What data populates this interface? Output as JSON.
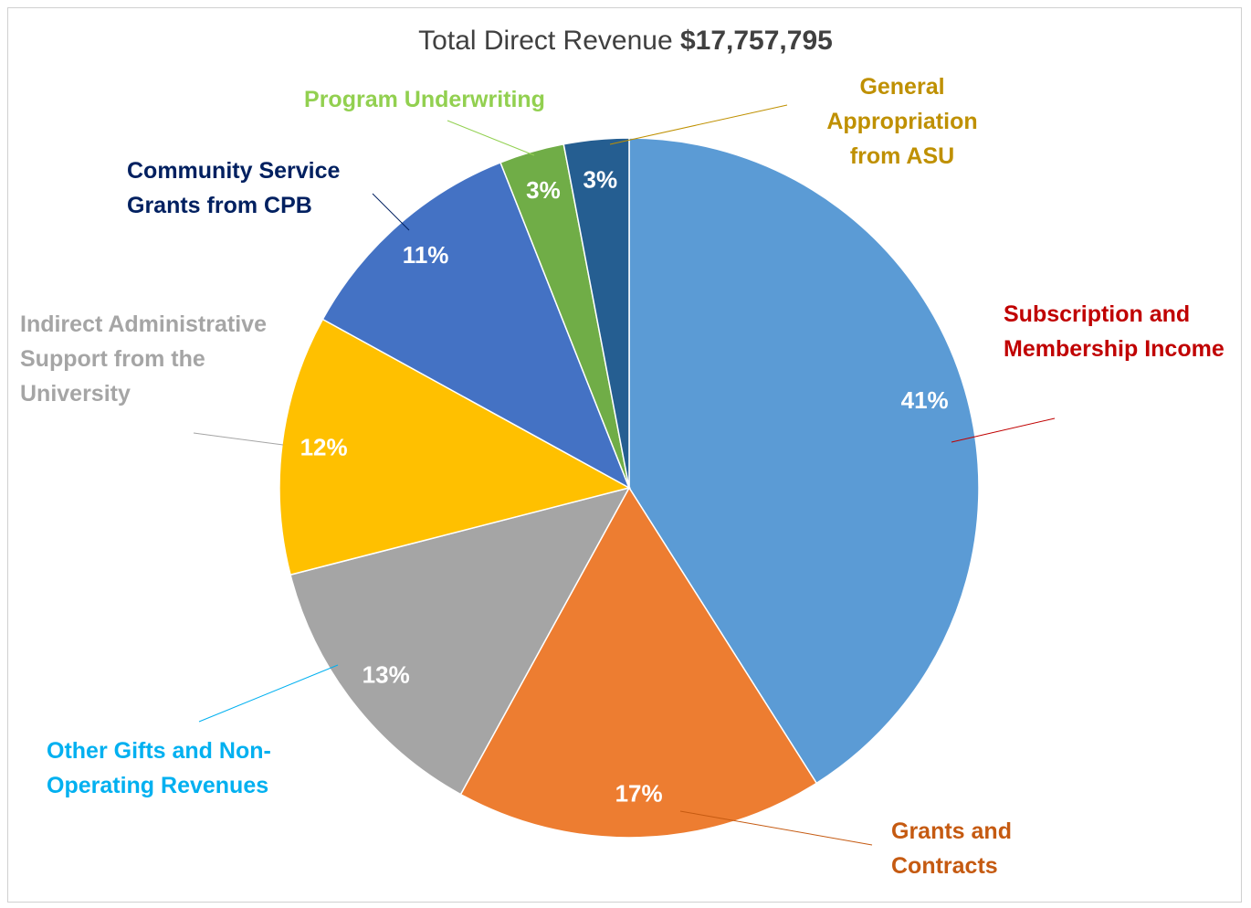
{
  "chart_data": {
    "type": "pie",
    "title": "Total Direct Revenue",
    "title_value": "$17,757,795",
    "categories": [
      "Subscription and Membership Income",
      "Grants and Contracts",
      "Other Gifts and Non-Operating Revenues",
      "Indirect Administrative Support from the University",
      "Community Service Grants from CPB",
      "Program Underwriting",
      "General Appropriation from ASU"
    ],
    "values": [
      41,
      17,
      13,
      12,
      11,
      3,
      3
    ],
    "value_labels": [
      "41%",
      "17%",
      "13%",
      "12%",
      "11%",
      "3%",
      "3%"
    ],
    "colors": [
      "#5b9bd5",
      "#ed7d31",
      "#a5a5a5",
      "#ffc000",
      "#4472c4",
      "#70ad47",
      "#255e91"
    ],
    "label_colors": [
      "#c00000",
      "#c55a11",
      "#00b0f0",
      "#a5a5a5",
      "#002060",
      "#92d050",
      "#bf9000"
    ]
  }
}
